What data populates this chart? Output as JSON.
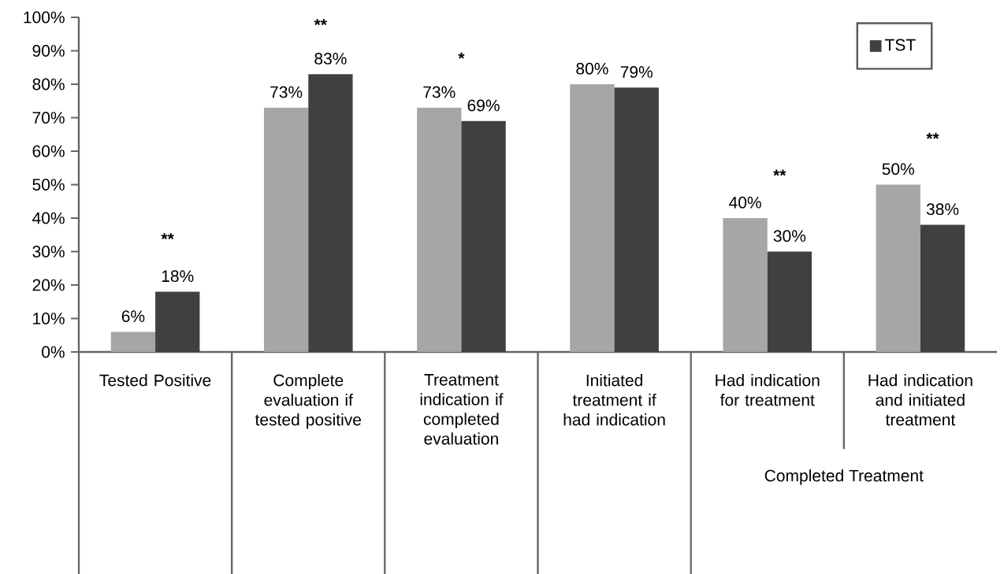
{
  "chart_data": {
    "type": "bar",
    "categories": [
      "Tested Positive",
      "Complete evaluation if tested positive",
      "Treatment indication if completed evaluation",
      "Initiated treatment if had indication",
      "Had indication for treatment",
      "Had indication and initiated treatment"
    ],
    "series": [
      {
        "color": "#a6a6a6",
        "values": [
          6,
          73,
          73,
          80,
          40,
          50
        ],
        "value_labels": [
          "6%",
          "73%",
          "73%",
          "80%",
          "40%",
          "50%"
        ]
      },
      {
        "name": "TST",
        "color": "#404040",
        "values": [
          18,
          83,
          69,
          79,
          30,
          38
        ],
        "value_labels": [
          "18%",
          "83%",
          "69%",
          "79%",
          "30%",
          "38%"
        ]
      }
    ],
    "ylim": [
      0,
      100
    ],
    "yticks": [
      {
        "value": 0,
        "label": "0%"
      },
      {
        "value": 10,
        "label": "10%"
      },
      {
        "value": 20,
        "label": "20%"
      },
      {
        "value": 30,
        "label": "30%"
      },
      {
        "value": 40,
        "label": "40%"
      },
      {
        "value": 50,
        "label": "50%"
      },
      {
        "value": 60,
        "label": "60%"
      },
      {
        "value": 70,
        "label": "70%"
      },
      {
        "value": 80,
        "label": "80%"
      },
      {
        "value": 90,
        "label": "90%"
      },
      {
        "value": 100,
        "label": "100%"
      }
    ],
    "annotations": [
      "**",
      "**",
      "*",
      "**",
      "**",
      "Completed Treatment"
    ],
    "legend": "top right",
    "grid": false
  }
}
